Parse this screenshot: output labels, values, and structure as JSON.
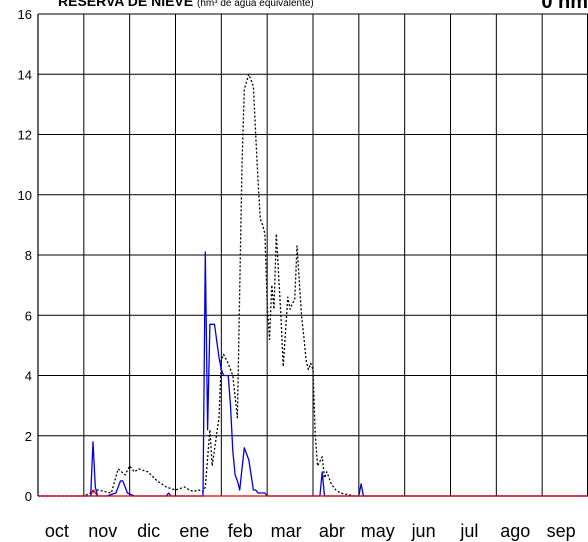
{
  "header": {
    "title": "RESERVA DE NIEVE",
    "subtitle": "(hm³ de agua equivalente)",
    "corner_text": "0 hm"
  },
  "chart_data": {
    "type": "line",
    "title": "RESERVA DE NIEVE",
    "ylabel": "",
    "xlabel": "",
    "ylim": [
      0,
      16
    ],
    "yticks": [
      0,
      2,
      4,
      6,
      8,
      10,
      12,
      14,
      16
    ],
    "categories": [
      "oct",
      "nov",
      "dic",
      "ene",
      "feb",
      "mar",
      "abr",
      "may",
      "jun",
      "jul",
      "ago",
      "sep"
    ],
    "grid": true,
    "colors": {
      "blue": "#0000dd",
      "dotted": "#000000",
      "red": "#dd0000"
    },
    "series": [
      {
        "style": "dotted-black",
        "x": [
          0,
          1.0,
          1.3,
          1.6,
          1.75,
          1.9,
          2.0,
          2.1,
          2.2,
          2.4,
          2.6,
          2.8,
          3.0,
          3.2,
          3.3,
          3.4,
          3.5,
          3.6,
          3.65,
          3.75,
          3.8,
          3.95,
          4.0,
          4.05,
          4.15,
          4.25,
          4.35,
          4.45,
          4.5,
          4.6,
          4.7,
          4.75,
          4.8,
          4.85,
          4.9,
          4.95,
          5.0,
          5.05,
          5.1,
          5.15,
          5.2,
          5.3,
          5.35,
          5.45,
          5.5,
          5.55,
          5.6,
          5.65,
          5.75,
          5.8,
          5.85,
          5.9,
          5.95,
          6.0,
          6.05,
          6.1,
          6.2,
          6.25,
          6.3,
          6.4,
          6.5,
          6.6,
          6.75,
          6.9,
          7.0,
          11.99
        ],
        "y": [
          0,
          0,
          0.2,
          0.1,
          0.9,
          0.7,
          1.0,
          0.8,
          0.9,
          0.8,
          0.5,
          0.3,
          0.2,
          0.3,
          0.2,
          0.15,
          0.2,
          0.15,
          0.3,
          2.2,
          1.0,
          2.6,
          4.5,
          4.7,
          4.4,
          4.0,
          2.6,
          11.0,
          13.5,
          14.0,
          13.6,
          12.0,
          10.5,
          9.2,
          9.0,
          8.7,
          6.4,
          5.2,
          7.0,
          6.2,
          8.7,
          6.0,
          4.3,
          6.6,
          6.2,
          6.4,
          6.5,
          8.3,
          6.0,
          5.3,
          4.5,
          4.2,
          4.4,
          4.2,
          2.0,
          1.0,
          1.3,
          0.6,
          0.8,
          0.4,
          0.2,
          0.1,
          0.05,
          0.0,
          0.0,
          0
        ]
      },
      {
        "style": "solid-blue",
        "x": [
          0,
          1.15,
          1.2,
          1.25,
          1.3,
          1.5,
          1.7,
          1.8,
          1.85,
          1.95,
          2.1,
          2.2,
          2.8,
          2.85,
          2.9,
          3.0,
          3.6,
          3.65,
          3.7,
          3.75,
          3.8,
          3.85,
          3.95,
          4.0,
          4.05,
          4.15,
          4.2,
          4.25,
          4.3,
          4.35,
          4.4,
          4.5,
          4.55,
          4.6,
          4.7,
          4.75,
          4.8,
          4.85,
          4.95,
          5.0,
          5.05,
          6.15,
          6.2,
          6.25,
          7.0,
          7.05,
          7.1,
          11.99
        ],
        "y": [
          0,
          0,
          1.8,
          0.3,
          0,
          0,
          0.1,
          0.5,
          0.5,
          0.1,
          0,
          0,
          0,
          0.1,
          0,
          0,
          0,
          8.1,
          2.2,
          5.7,
          5.7,
          5.7,
          4.6,
          4.2,
          4.0,
          4.0,
          3.0,
          1.5,
          0.7,
          0.5,
          0.2,
          1.6,
          1.4,
          1.2,
          0.2,
          0.2,
          0.1,
          0.1,
          0.1,
          0,
          0,
          0,
          0.8,
          0,
          0,
          0.4,
          0,
          0
        ]
      },
      {
        "style": "solid-red",
        "x": [
          0,
          1.15,
          1.2,
          1.3,
          11.99
        ],
        "y": [
          0,
          0,
          0.2,
          0,
          0
        ]
      }
    ]
  }
}
